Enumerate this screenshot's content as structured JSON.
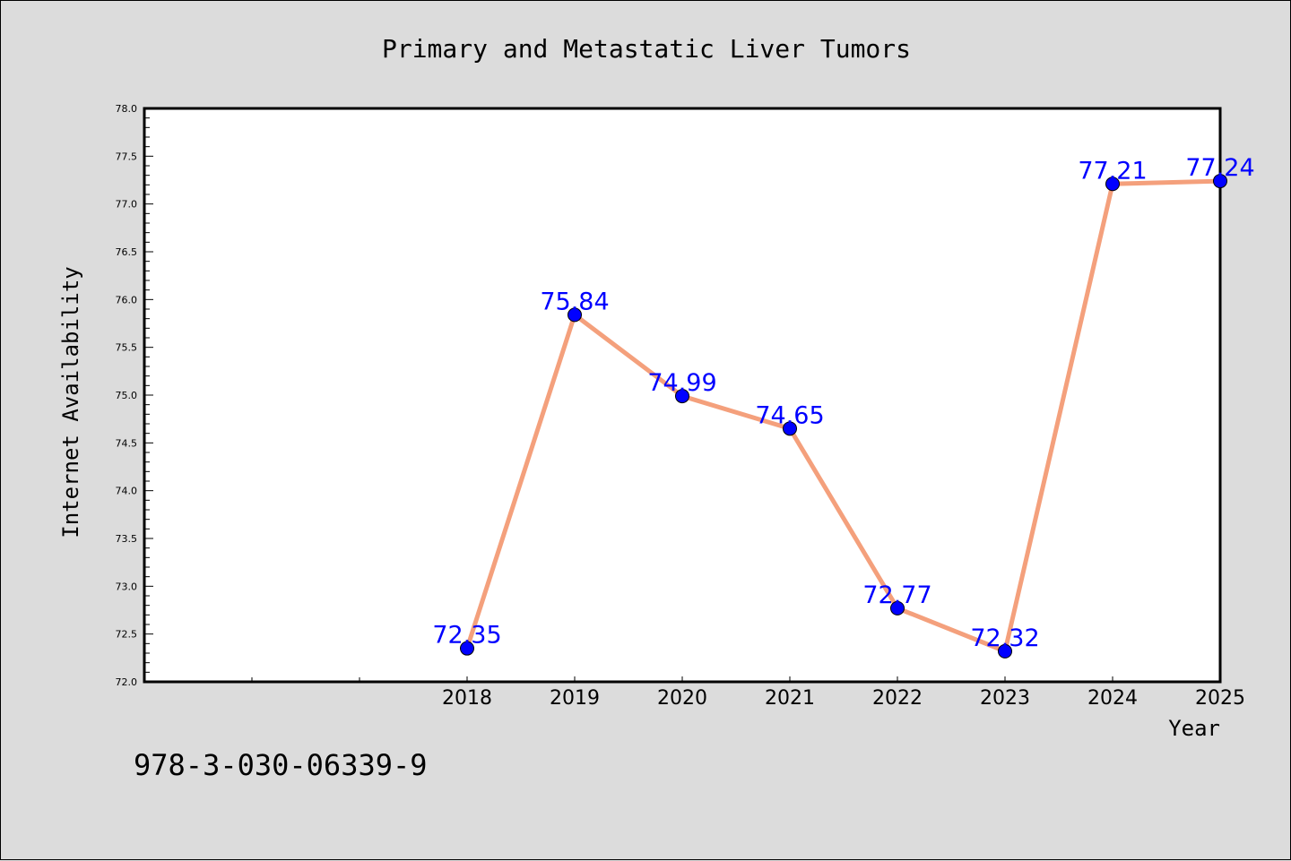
{
  "chart_data": {
    "type": "line",
    "title": "Primary and Metastatic Liver Tumors",
    "xlabel": "Year",
    "ylabel": "Internet Availability",
    "categories": [
      "2018",
      "2019",
      "2020",
      "2021",
      "2022",
      "2023",
      "2024",
      "2025"
    ],
    "series": [
      {
        "values": [
          72.35,
          75.84,
          74.99,
          74.65,
          72.77,
          72.32,
          77.21,
          77.24
        ],
        "line_color": "#f4a07c",
        "marker_color": "#0000ff"
      }
    ],
    "data_labels": [
      "72.35",
      "75.84",
      "74.99",
      "74.65",
      "72.77",
      "72.32",
      "77.21",
      "77.24"
    ],
    "ylim": [
      72.0,
      78.0
    ],
    "yticks": [
      "72.0",
      "72.5",
      "73.0",
      "73.5",
      "74.0",
      "74.5",
      "75.0",
      "75.5",
      "76.0",
      "76.5",
      "77.0",
      "77.5",
      "78.0"
    ],
    "grid": false,
    "data_label_color": "#0000ff",
    "background_color": "#dcdcdc",
    "plot_background_color": "#ffffff"
  },
  "footnote": "978-3-030-06339-9"
}
